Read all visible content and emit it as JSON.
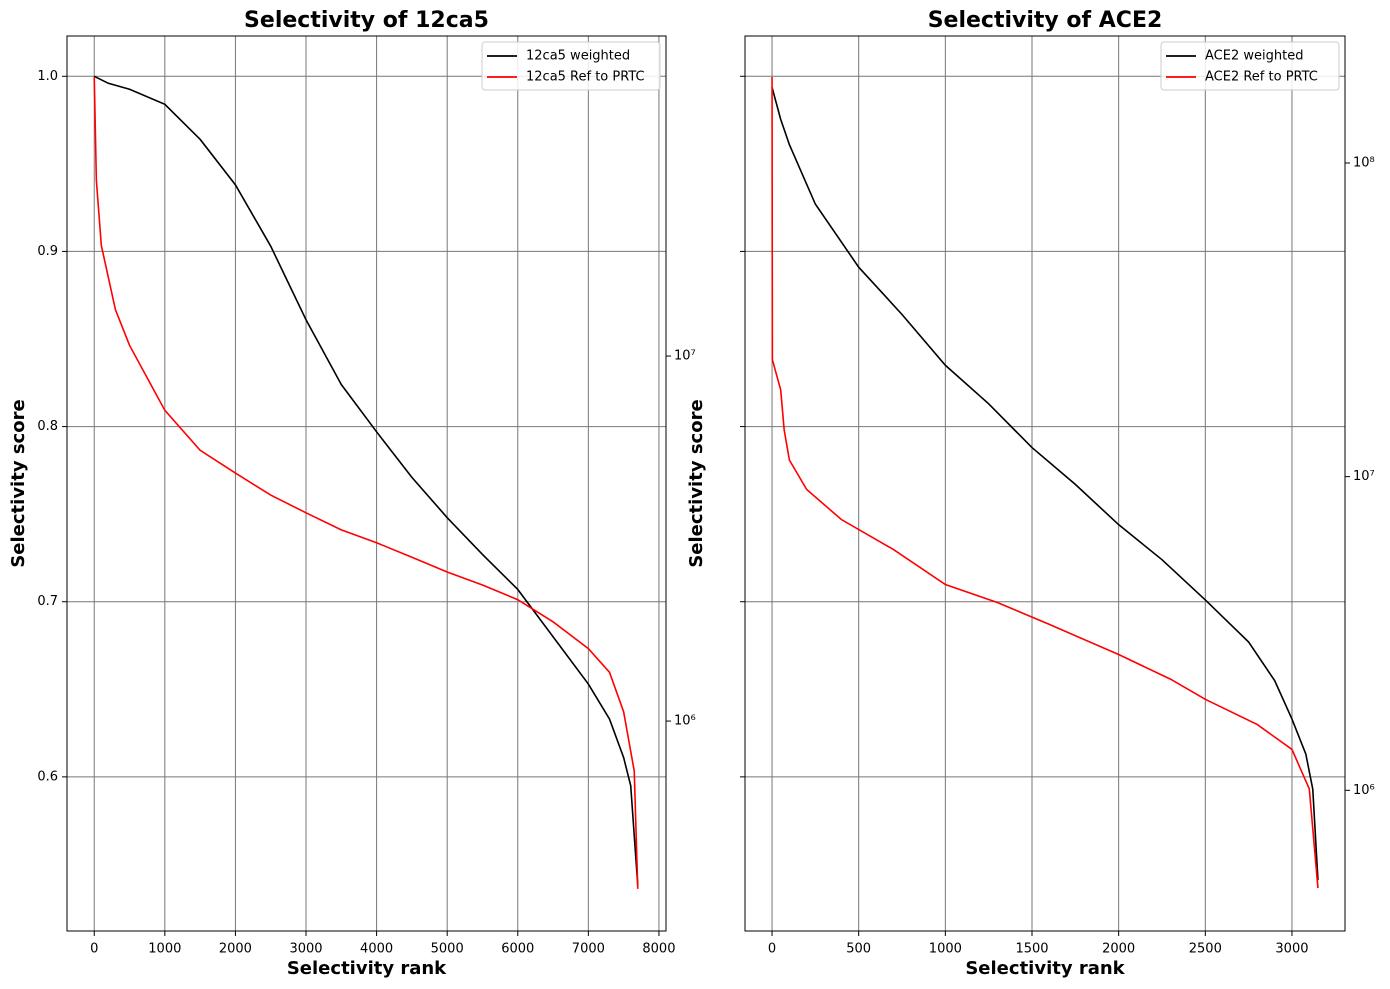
{
  "chart_data": [
    {
      "type": "line",
      "title": "Selectivity of 12ca5",
      "xlabel": "Selectivity rank",
      "ylabel": "Selectivity score",
      "xlim": [
        -386,
        8100
      ],
      "xticks": [
        0,
        1000,
        2000,
        3000,
        4000,
        5000,
        6000,
        7000,
        8000
      ],
      "ylim": [
        0.512,
        1.023
      ],
      "yticks": [
        {
          "value": 0.6,
          "label": "0.6"
        },
        {
          "value": 0.7,
          "label": "0.7"
        },
        {
          "value": 0.8,
          "label": "0.8"
        },
        {
          "value": 0.9,
          "label": "0.9"
        },
        {
          "value": 1.0,
          "label": "1.0"
        }
      ],
      "y2lim": [
        266000,
        75300000
      ],
      "y2log": true,
      "y2ticks": [
        {
          "value": 1000000,
          "label": "10⁶"
        },
        {
          "value": 10000000,
          "label": "10⁷"
        }
      ],
      "grid": true,
      "legend": "upper right",
      "series": [
        {
          "name": "12ca5 weighted",
          "color": "#000000",
          "x": [
            0,
            200,
            500,
            1000,
            1500,
            2000,
            2500,
            3000,
            3500,
            4000,
            4500,
            5000,
            5500,
            6000,
            6500,
            7000,
            7300,
            7500,
            7600,
            7700
          ],
          "values": [
            1.0,
            0.996,
            0.9926,
            0.984,
            0.964,
            0.938,
            0.903,
            0.861,
            0.824,
            0.797,
            0.771,
            0.748,
            0.727,
            0.707,
            0.68,
            0.653,
            0.633,
            0.611,
            0.595,
            0.538
          ]
        },
        {
          "name": "12ca5 Ref to PRTC",
          "color": "#ff0000",
          "axis": "y2",
          "x": [
            0,
            30,
            100,
            300,
            500,
            1000,
            1500,
            2000,
            2500,
            3000,
            3500,
            4000,
            4500,
            5000,
            5500,
            6000,
            6500,
            7000,
            7300,
            7500,
            7650,
            7700
          ],
          "values": [
            58100000,
            30300000,
            20100000,
            13400000,
            10700000,
            7100000,
            5520000,
            4780000,
            4160000,
            3720000,
            3340000,
            3080000,
            2810000,
            2560000,
            2360000,
            2150000,
            1870000,
            1580000,
            1360000,
            1060000,
            730000,
            347000
          ]
        }
      ]
    },
    {
      "type": "line",
      "title": "Selectivity of ACE2",
      "xlabel": "Selectivity rank",
      "ylabel": "Selectivity score",
      "xlim": [
        -156,
        3306
      ],
      "xticks": [
        0,
        500,
        1000,
        1500,
        2000,
        2500,
        3000
      ],
      "ylim": [
        0.512,
        1.023
      ],
      "yticks": [
        0.6,
        0.7,
        0.8,
        0.9,
        1.0
      ],
      "sharey": true,
      "y2lim": [
        356000,
        254000000
      ],
      "y2log": true,
      "y2ticks": [
        {
          "value": 1000000,
          "label": "10⁶"
        },
        {
          "value": 10000000,
          "label": "10⁷"
        },
        {
          "value": 100000000,
          "label": "10⁸"
        }
      ],
      "grid": true,
      "legend": "upper right",
      "series": [
        {
          "name": "ACE2 weighted",
          "color": "#000000",
          "x": [
            0,
            50,
            100,
            250,
            500,
            750,
            1000,
            1250,
            1500,
            1750,
            2000,
            2250,
            2500,
            2750,
            2900,
            3000,
            3080,
            3120,
            3150
          ],
          "values": [
            0.9937,
            0.9754,
            0.961,
            0.927,
            0.891,
            0.864,
            0.835,
            0.813,
            0.788,
            0.767,
            0.744,
            0.724,
            0.701,
            0.677,
            0.655,
            0.633,
            0.613,
            0.593,
            0.541
          ]
        },
        {
          "name": "ACE2 Ref to PRTC",
          "color": "#ff0000",
          "axis": "y2",
          "x": [
            0,
            2,
            50,
            70,
            100,
            200,
            400,
            700,
            1000,
            1300,
            1600,
            2000,
            2300,
            2500,
            2800,
            3000,
            3100,
            3150
          ],
          "values": [
            188000000,
            23600000,
            18900000,
            14100000,
            11300000,
            9100000,
            7300000,
            5860000,
            4530000,
            3970000,
            3380000,
            2710000,
            2260000,
            1950000,
            1620000,
            1350000,
            1010000,
            488000
          ]
        }
      ]
    }
  ]
}
